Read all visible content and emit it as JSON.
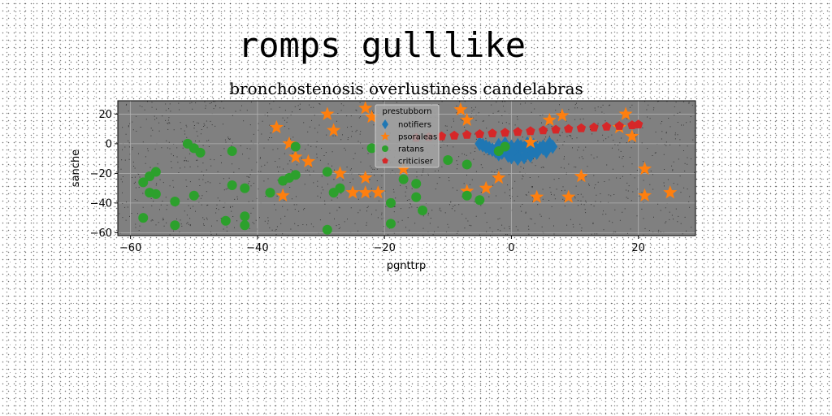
{
  "chart_data": {
    "type": "scatter",
    "suptitle": "romps gulllike",
    "title": "bronchostenosis overlustiness candelabras",
    "xlabel": "pgnttrp",
    "ylabel": "sanche",
    "xlim": [
      -62,
      29
    ],
    "ylim": [
      -62,
      29
    ],
    "xticks": [
      -60,
      -40,
      -20,
      0,
      20
    ],
    "yticks": [
      -60,
      -40,
      -20,
      0,
      20
    ],
    "xtick_labels": [
      "−60",
      "−40",
      "−20",
      "0",
      "20"
    ],
    "ytick_labels": [
      "−60",
      "−40",
      "−20",
      "0",
      "20"
    ],
    "grid": true,
    "plot_background": "#808080",
    "legend": {
      "title": "prestubborn",
      "placement": "top-center"
    },
    "series": [
      {
        "name": "notifiers",
        "marker": "diamond",
        "color": "#1f77b4",
        "points": [
          [
            -5,
            0
          ],
          [
            -4,
            -2
          ],
          [
            -3,
            -4
          ],
          [
            -2,
            -1
          ],
          [
            -1,
            -3
          ],
          [
            0,
            -5
          ],
          [
            1,
            -7
          ],
          [
            2,
            -9
          ],
          [
            3,
            -6
          ],
          [
            4,
            -4
          ],
          [
            5,
            -2
          ],
          [
            6,
            0
          ],
          [
            -4.5,
            -1
          ],
          [
            -3.5,
            -3
          ],
          [
            -2.5,
            -5
          ],
          [
            -1.5,
            -6
          ],
          [
            -0.5,
            -8
          ],
          [
            0.5,
            -4
          ],
          [
            1.5,
            -2
          ],
          [
            2.5,
            0
          ],
          [
            3.5,
            -1
          ],
          [
            4.5,
            -3
          ],
          [
            5.5,
            -5
          ],
          [
            6.5,
            -2
          ],
          [
            0,
            -2
          ],
          [
            1,
            -1
          ],
          [
            2,
            -3
          ],
          [
            3,
            -4
          ],
          [
            -1,
            0
          ],
          [
            4,
            -6
          ],
          [
            -2,
            -7
          ],
          [
            0,
            -9
          ],
          [
            1,
            -10
          ],
          [
            3,
            -8
          ],
          [
            5,
            -3
          ]
        ]
      },
      {
        "name": "psoraleas",
        "marker": "star",
        "color": "#ff7f0e",
        "points": [
          [
            -29,
            20
          ],
          [
            -23,
            24
          ],
          [
            -22,
            18
          ],
          [
            -8,
            23
          ],
          [
            -37,
            11
          ],
          [
            -36,
            -35
          ],
          [
            -34,
            -9
          ],
          [
            -35,
            0
          ],
          [
            -32,
            -12
          ],
          [
            -28,
            9
          ],
          [
            -27,
            -20
          ],
          [
            -23,
            -23
          ],
          [
            -23,
            -33
          ],
          [
            -25,
            -33
          ],
          [
            -21,
            -33
          ],
          [
            -17,
            -17
          ],
          [
            -7,
            16
          ],
          [
            -7,
            -32
          ],
          [
            -4,
            -30
          ],
          [
            -2,
            -23
          ],
          [
            3,
            1
          ],
          [
            4,
            -36
          ],
          [
            6,
            16
          ],
          [
            8,
            19
          ],
          [
            9,
            -36
          ],
          [
            11,
            -22
          ],
          [
            17,
            11
          ],
          [
            18,
            20
          ],
          [
            19,
            5
          ],
          [
            21,
            -17
          ],
          [
            21,
            -35
          ],
          [
            25,
            -33
          ]
        ]
      },
      {
        "name": "ratans",
        "marker": "circle",
        "color": "#2ca02c",
        "points": [
          [
            -58,
            -26
          ],
          [
            -57,
            -22
          ],
          [
            -56,
            -19
          ],
          [
            -57,
            -33
          ],
          [
            -56,
            -34
          ],
          [
            -58,
            -50
          ],
          [
            -53,
            -39
          ],
          [
            -53,
            -55
          ],
          [
            -51,
            0
          ],
          [
            -50,
            -3
          ],
          [
            -49,
            -6
          ],
          [
            -50,
            -35
          ],
          [
            -44,
            -5
          ],
          [
            -44,
            -28
          ],
          [
            -45,
            -52
          ],
          [
            -42,
            -30
          ],
          [
            -42,
            -49
          ],
          [
            -42,
            -55
          ],
          [
            -38,
            -33
          ],
          [
            -36,
            -25
          ],
          [
            -35,
            -23
          ],
          [
            -34,
            -21
          ],
          [
            -34,
            -2
          ],
          [
            -29,
            -19
          ],
          [
            -29,
            -58
          ],
          [
            -28,
            -33
          ],
          [
            -27,
            -30
          ],
          [
            -22,
            -3
          ],
          [
            -19,
            -40
          ],
          [
            -19,
            -54
          ],
          [
            -17,
            -24
          ],
          [
            -15,
            -27
          ],
          [
            -15,
            -36
          ],
          [
            -14,
            -45
          ],
          [
            -10,
            -11
          ],
          [
            -7,
            -14
          ],
          [
            -7,
            -35
          ],
          [
            -5,
            -38
          ],
          [
            -2,
            -5
          ],
          [
            -1,
            -2
          ]
        ]
      },
      {
        "name": "criticiser",
        "marker": "pentagon",
        "color": "#d62728",
        "points": [
          [
            -15,
            4
          ],
          [
            -13,
            4.5
          ],
          [
            -11,
            5
          ],
          [
            -9,
            5.5
          ],
          [
            -7,
            6
          ],
          [
            -5,
            6.5
          ],
          [
            -3,
            7
          ],
          [
            -1,
            7.5
          ],
          [
            1,
            8
          ],
          [
            3,
            8.5
          ],
          [
            5,
            9
          ],
          [
            7,
            9.5
          ],
          [
            9,
            10
          ],
          [
            11,
            10.5
          ],
          [
            13,
            11
          ],
          [
            15,
            11.5
          ],
          [
            17,
            12
          ],
          [
            19,
            12.5
          ],
          [
            20,
            13
          ]
        ]
      }
    ]
  }
}
